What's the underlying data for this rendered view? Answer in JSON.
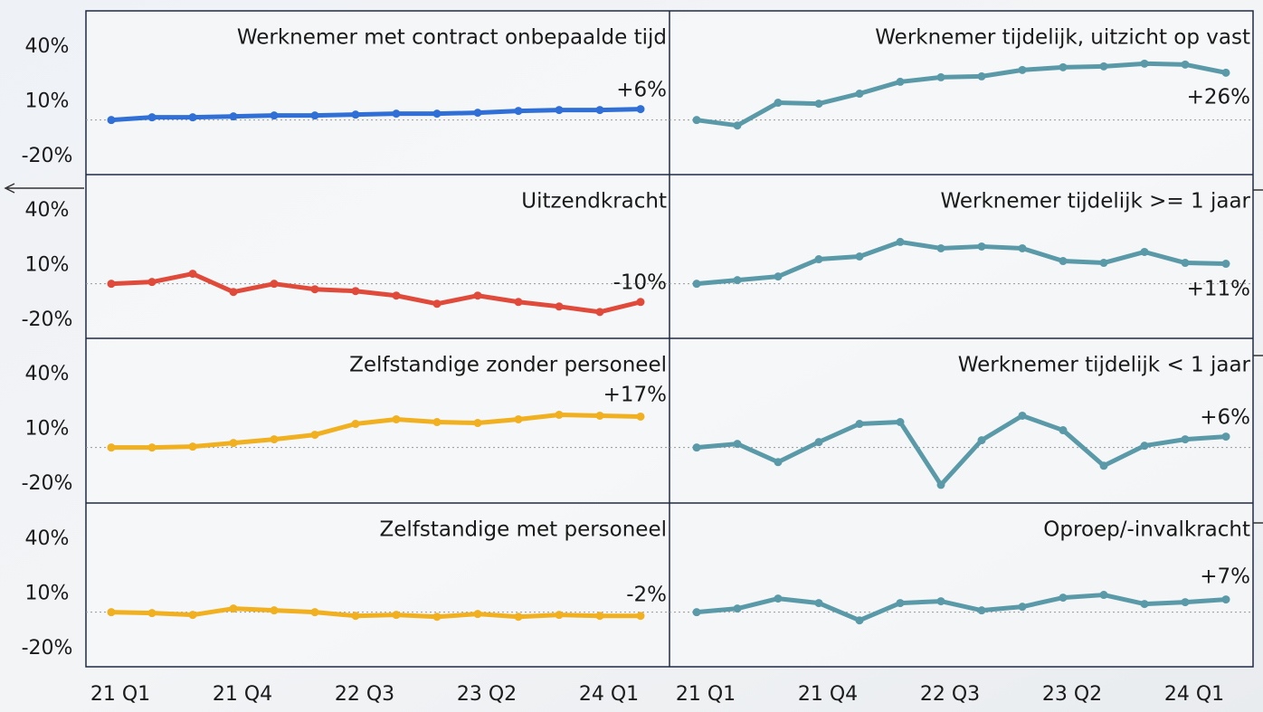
{
  "chart_data": {
    "type": "line",
    "categories": [
      "21 Q1",
      null,
      null,
      "21 Q4",
      null,
      null,
      "22 Q3",
      null,
      null,
      "23 Q2",
      null,
      null,
      "24 Q1",
      null
    ],
    "ylim": [
      -30,
      60
    ],
    "yticks": [
      {
        "value": 40,
        "label": "40%"
      },
      {
        "value": 10,
        "label": "10%"
      },
      {
        "value": -20,
        "label": "-20%"
      }
    ],
    "panels": [
      {
        "title": "Werknemer met contract onbepaalde tijd",
        "color": "#2f6fd6",
        "end_label": "+6%",
        "values": [
          0,
          1.5,
          1.5,
          2,
          2.5,
          2.5,
          3,
          3.5,
          3.5,
          4,
          5,
          5.5,
          5.5,
          6
        ]
      },
      {
        "title": "Werknemer tijdelijk, uitzicht op vast",
        "color": "#5a9aa8",
        "end_label": "+26%",
        "values": [
          0,
          -3,
          9.5,
          9,
          14.5,
          21,
          23.5,
          24,
          27.5,
          29,
          29.5,
          31,
          30.5,
          26
        ]
      },
      {
        "title": "Uitzendkracht",
        "color": "#e04a3a",
        "end_label": "-10%",
        "values": [
          0,
          1,
          5.5,
          -4.5,
          0,
          -3,
          -4,
          -6.5,
          -11,
          -6.5,
          -10,
          -12.5,
          -15.5,
          -10
        ]
      },
      {
        "title": "Werknemer tijdelijk >= 1 jaar",
        "color": "#5a9aa8",
        "end_label": "+11%",
        "values": [
          0,
          2,
          4,
          13.5,
          15,
          23,
          19.5,
          20.5,
          19.5,
          12.5,
          11.5,
          17.5,
          11.5,
          11
        ]
      },
      {
        "title": "Zelfstandige zonder personeel",
        "color": "#f0b020",
        "end_label": "+17%",
        "values": [
          0,
          0,
          0.5,
          2.5,
          4.5,
          7,
          13,
          15.5,
          14,
          13.5,
          15.5,
          18,
          17.5,
          17
        ]
      },
      {
        "title": "Werknemer tijdelijk < 1 jaar",
        "color": "#5a9aa8",
        "end_label": "+6%",
        "values": [
          0,
          2,
          -8,
          3,
          13,
          14,
          -20.5,
          4,
          17.5,
          9.5,
          -10,
          1,
          4.5,
          6
        ]
      },
      {
        "title": "Zelfstandige met personeel",
        "color": "#f0b020",
        "end_label": "-2%",
        "values": [
          0,
          -0.5,
          -1.5,
          2,
          1,
          0,
          -2,
          -1.5,
          -2.5,
          -1,
          -2.5,
          -1.5,
          -2,
          -2
        ]
      },
      {
        "title": "Oproep/-invalkracht",
        "color": "#5a9aa8",
        "end_label": "+7%",
        "values": [
          0,
          2,
          7.5,
          5,
          -4.5,
          5,
          6,
          1,
          3,
          8,
          9.5,
          4.5,
          5.5,
          7
        ]
      }
    ]
  }
}
